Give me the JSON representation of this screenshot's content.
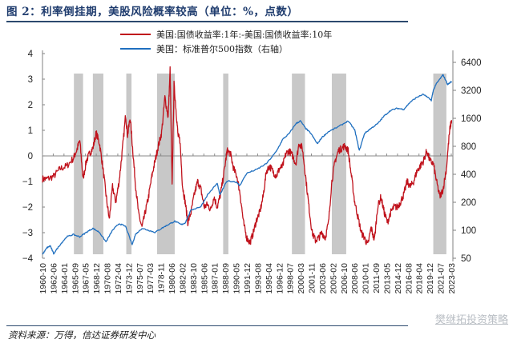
{
  "header": {
    "title": "图 2：利率倒挂期，美股风险概率较高（单位：%，点数）"
  },
  "footer": {
    "source": "资料来源：万得，信达证券研发中心",
    "watermark": "樊继拓投资策略"
  },
  "legend": {
    "items": [
      {
        "label": "美国:国债收益率:1年:-美国:国债收益率:10年",
        "color": "#c0121c"
      },
      {
        "label": "美国：标准普尔500指数（右轴）",
        "color": "#1f6fbf"
      }
    ]
  },
  "chart_data": {
    "type": "line",
    "title": "利率倒挂期，美股风险概率较高（单位：%，点数）",
    "xlabel": "",
    "ylabel": "",
    "y2label": "",
    "ylim": [
      -4,
      4
    ],
    "y2lim": [
      50,
      6400
    ],
    "y2scale": "log2",
    "grid": false,
    "legend_position": "top",
    "y_ticks": [
      "4",
      "3",
      "2",
      "1",
      "0",
      "-1",
      "-2",
      "-3",
      "-4"
    ],
    "y2_ticks": [
      "6400",
      "3200",
      "1600",
      "800",
      "400",
      "200",
      "100",
      "50"
    ],
    "x_ticks": [
      "1960-10",
      "1962-06",
      "1964-01",
      "1965-09",
      "1967-05",
      "1968-12",
      "1970-08",
      "1972-04",
      "1973-12",
      "1975-07",
      "1977-03",
      "1978-11",
      "1980-06",
      "1982-02",
      "1983-10",
      "1985-06",
      "1987-01",
      "1988-09",
      "1990-05",
      "1991-12",
      "1993-08",
      "1995-04",
      "1996-12",
      "1998-07",
      "2000-03",
      "2001-11",
      "2003-06",
      "2005-02",
      "2006-10",
      "2008-06",
      "2010-01",
      "2011-09",
      "2013-05",
      "2014-12",
      "2016-08",
      "2018-04",
      "2019-12",
      "2021-07",
      "2023-03"
    ],
    "shaded_periods": [
      {
        "start": 1965.6,
        "end": 1967.0
      },
      {
        "start": 1968.5,
        "end": 1970.1
      },
      {
        "start": 1973.6,
        "end": 1974.4
      },
      {
        "start": 1978.3,
        "end": 1981.0
      },
      {
        "start": 1988.4,
        "end": 1989.2
      },
      {
        "start": 1998.9,
        "end": 2000.9
      },
      {
        "start": 2005.0,
        "end": 2007.2
      },
      {
        "start": 2020.5,
        "end": 2022.5
      }
    ],
    "series": [
      {
        "name": "美国:国债收益率:1年:-美国:国债收益率:10年",
        "axis": "left",
        "color": "#c0121c",
        "x": [
          1960.8,
          1961.5,
          1962.5,
          1963.5,
          1964.5,
          1965.5,
          1966.0,
          1966.5,
          1967.0,
          1967.5,
          1968.0,
          1968.5,
          1969.0,
          1969.5,
          1970.0,
          1970.5,
          1971.0,
          1971.5,
          1972.0,
          1972.5,
          1973.0,
          1973.5,
          1973.8,
          1974.2,
          1974.6,
          1975.0,
          1975.5,
          1976.0,
          1976.5,
          1977.0,
          1977.5,
          1978.0,
          1978.5,
          1979.0,
          1979.5,
          1980.0,
          1980.3,
          1980.6,
          1980.9,
          1981.2,
          1981.5,
          1981.8,
          1982.2,
          1982.6,
          1983.0,
          1983.5,
          1984.0,
          1984.5,
          1985.0,
          1985.5,
          1986.0,
          1986.5,
          1987.0,
          1987.5,
          1988.0,
          1988.5,
          1989.0,
          1989.5,
          1990.0,
          1990.5,
          1991.0,
          1991.5,
          1992.0,
          1992.5,
          1993.0,
          1993.5,
          1994.0,
          1994.5,
          1995.0,
          1995.5,
          1996.0,
          1996.5,
          1997.0,
          1997.5,
          1998.0,
          1998.5,
          1999.0,
          1999.5,
          2000.0,
          2000.5,
          2001.0,
          2001.5,
          2002.0,
          2002.5,
          2003.0,
          2003.5,
          2004.0,
          2004.5,
          2005.0,
          2005.5,
          2006.0,
          2006.5,
          2007.0,
          2007.5,
          2008.0,
          2008.5,
          2009.0,
          2009.5,
          2010.0,
          2010.5,
          2011.0,
          2011.5,
          2012.0,
          2012.5,
          2013.0,
          2013.5,
          2014.0,
          2014.5,
          2015.0,
          2015.5,
          2016.0,
          2016.5,
          2017.0,
          2017.5,
          2018.0,
          2018.5,
          2019.0,
          2019.5,
          2020.0,
          2020.5,
          2021.0,
          2021.5,
          2022.0,
          2022.5,
          2023.0,
          2023.3
        ],
        "values": [
          -0.9,
          -0.9,
          -0.8,
          -0.5,
          -0.4,
          -0.1,
          0.2,
          0.6,
          -0.9,
          -0.2,
          0.1,
          0.3,
          0.9,
          0.5,
          -0.4,
          -1.5,
          -2.5,
          -1.2,
          -1.8,
          -1.0,
          0.2,
          1.6,
          0.8,
          1.5,
          0.2,
          -1.1,
          -2.3,
          -2.8,
          -2.2,
          -1.6,
          -0.8,
          -0.2,
          0.4,
          0.9,
          2.3,
          1.5,
          3.4,
          -1.2,
          2.8,
          1.8,
          0.8,
          0.6,
          -1.2,
          -1.8,
          -2.6,
          -2.2,
          -1.5,
          -1.0,
          -1.3,
          -2.0,
          -1.9,
          -2.1,
          -1.6,
          -2.0,
          -1.5,
          -0.7,
          0.2,
          0.1,
          -0.5,
          -0.8,
          -1.5,
          -2.6,
          -3.2,
          -3.4,
          -3.0,
          -2.5,
          -2.2,
          -1.6,
          -0.6,
          -0.4,
          -0.6,
          -0.8,
          -0.5,
          -0.4,
          0.1,
          0.2,
          0.0,
          -0.3,
          0.5,
          0.3,
          -0.8,
          -2.0,
          -3.0,
          -3.3,
          -3.2,
          -3.0,
          -3.2,
          -2.6,
          -1.0,
          -0.2,
          0.2,
          0.3,
          0.4,
          0.2,
          -0.8,
          -1.8,
          -2.4,
          -3.0,
          -3.2,
          -3.5,
          -2.8,
          -3.3,
          -2.0,
          -1.6,
          -2.2,
          -2.6,
          -2.2,
          -2.0,
          -2.0,
          -1.8,
          -1.5,
          -1.0,
          -1.2,
          -1.0,
          -0.6,
          -0.4,
          -0.2,
          0.2,
          -0.2,
          -0.3,
          -1.0,
          -1.6,
          -1.3,
          -0.5,
          1.0,
          1.4
        ]
      },
      {
        "name": "美国：标准普尔500指数（右轴）",
        "axis": "right",
        "color": "#1f6fbf",
        "x": [
          1960.8,
          1961.5,
          1962.0,
          1962.5,
          1963.5,
          1964.5,
          1965.5,
          1966.5,
          1967.5,
          1968.5,
          1969.5,
          1970.5,
          1971.5,
          1972.5,
          1973.5,
          1974.5,
          1975.0,
          1976.0,
          1977.0,
          1978.0,
          1979.0,
          1980.0,
          1981.0,
          1982.0,
          1982.6,
          1983.5,
          1985.0,
          1986.0,
          1987.5,
          1987.9,
          1989.0,
          1990.5,
          1990.9,
          1992.0,
          1993.5,
          1995.0,
          1996.5,
          1997.5,
          1998.5,
          1999.5,
          2000.2,
          2001.0,
          2001.8,
          2002.8,
          2003.5,
          2004.5,
          2006.0,
          2007.5,
          2008.5,
          2009.2,
          2010.0,
          2011.0,
          2012.0,
          2013.0,
          2014.0,
          2015.0,
          2016.0,
          2017.0,
          2018.0,
          2019.0,
          2020.2,
          2020.5,
          2021.0,
          2022.0,
          2022.7,
          2023.3
        ],
        "values": [
          55,
          65,
          68,
          56,
          70,
          85,
          90,
          85,
          95,
          105,
          95,
          75,
          100,
          118,
          110,
          70,
          90,
          105,
          100,
          95,
          105,
          115,
          125,
          115,
          120,
          165,
          180,
          240,
          320,
          240,
          340,
          330,
          300,
          410,
          450,
          520,
          700,
          950,
          1100,
          1400,
          1500,
          1250,
          1100,
          850,
          1000,
          1150,
          1300,
          1500,
          1200,
          720,
          1100,
          1250,
          1400,
          1700,
          1950,
          2050,
          2000,
          2400,
          2700,
          2900,
          2500,
          3200,
          3800,
          4700,
          3700,
          4000
        ]
      }
    ]
  }
}
